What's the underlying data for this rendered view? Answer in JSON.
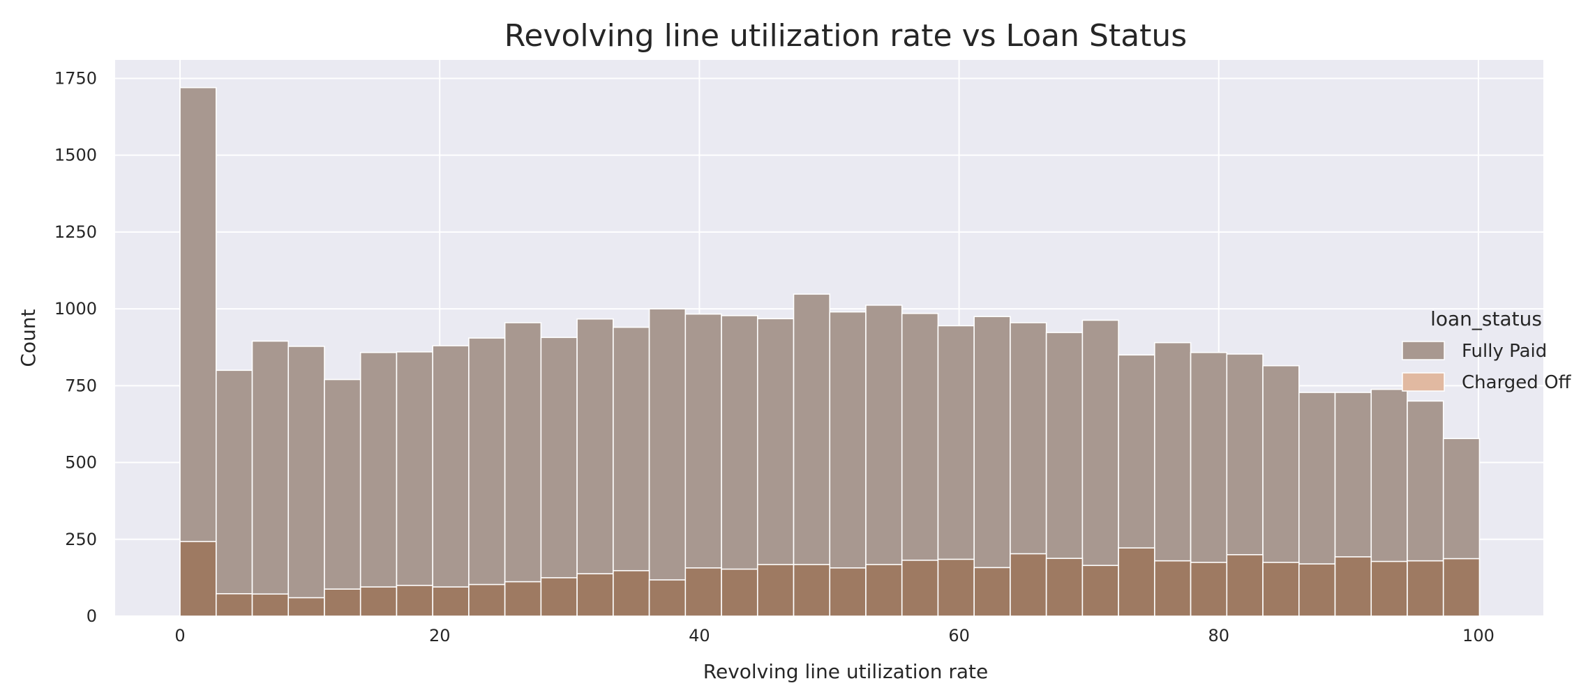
{
  "chart_data": {
    "type": "bar",
    "title": "Revolving line utilization rate vs Loan Status",
    "xlabel": "Revolving line utilization rate",
    "ylabel": "Count",
    "xlim": [
      -5,
      105
    ],
    "ylim": [
      0,
      1810
    ],
    "x_ticks": [
      0,
      20,
      40,
      60,
      80,
      100
    ],
    "y_ticks": [
      0,
      250,
      500,
      750,
      1000,
      1250,
      1500,
      1750
    ],
    "grid": true,
    "legend_title": "loan_status",
    "legend_position": "center-right",
    "bin_start": 0,
    "bin_width": 2.78,
    "colors": {
      "background": "#eaeaf2",
      "grid": "#ffffff",
      "bar_edge": "#ffffff",
      "overlap": "#9e7a62"
    },
    "series": [
      {
        "name": "Fully Paid",
        "color": "#a89890",
        "values": [
          1720,
          800,
          895,
          878,
          770,
          858,
          860,
          880,
          905,
          955,
          907,
          967,
          940,
          1000,
          983,
          978,
          968,
          1048,
          990,
          1012,
          985,
          945,
          975,
          955,
          923,
          963,
          850,
          890,
          858,
          853,
          815,
          728,
          728,
          738,
          700,
          578
        ]
      },
      {
        "name": "Charged Off",
        "color": "#e1b9a1",
        "values": [
          243,
          73,
          72,
          60,
          88,
          95,
          100,
          95,
          103,
          112,
          125,
          138,
          148,
          118,
          157,
          153,
          168,
          168,
          157,
          168,
          182,
          185,
          158,
          203,
          188,
          165,
          222,
          180,
          175,
          200,
          175,
          170,
          193,
          178,
          180,
          187
        ]
      }
    ]
  }
}
